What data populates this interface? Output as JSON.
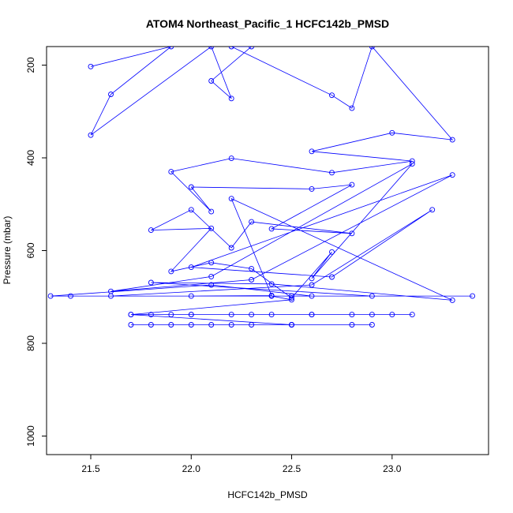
{
  "chart_data": {
    "type": "line",
    "title": "ATOM4 Northeast_Pacific_1 HCFC142b_PMSD",
    "xlabel": "HCFC142b_PMSD",
    "ylabel": "Pressure (mbar)",
    "xlim": [
      21.28,
      23.48
    ],
    "ylim": [
      1040,
      160
    ],
    "y_inverted": true,
    "x_ticks": [
      21.5,
      22.0,
      22.5,
      23.0
    ],
    "x_tick_labels": [
      "21.5",
      "22.0",
      "22.5",
      "23.0"
    ],
    "y_ticks": [
      200,
      400,
      600,
      800,
      1000
    ],
    "y_tick_labels": [
      "200",
      "400",
      "600",
      "800",
      "1000"
    ],
    "grid": false,
    "color": "#0000ff",
    "marker": "open-circle",
    "series": [
      {
        "x": [
          21.5,
          21.9,
          21.6,
          21.5,
          22.1,
          22.2,
          22.1,
          22.3,
          22.2,
          22.7,
          22.8,
          22.9,
          23.3,
          23.0,
          22.6,
          23.1,
          22.7,
          22.2,
          21.9,
          22.1,
          22.0,
          22.6,
          22.8,
          22.4,
          22.8,
          22.3,
          22.2,
          22.0,
          21.8,
          22.1,
          21.9,
          22.1,
          22.3,
          22.5,
          22.7,
          22.6,
          23.1,
          22.1,
          21.6,
          22.3,
          23.3,
          22.0,
          22.7,
          23.2,
          22.6,
          21.6,
          22.9,
          21.8,
          22.4,
          23.3,
          22.2,
          22.4,
          22.0,
          22.5,
          21.3,
          22.1,
          22.6,
          21.4,
          23.4,
          22.4,
          22.5,
          21.7,
          22.6,
          22.3,
          22.0,
          23.0,
          21.8,
          22.9,
          21.9,
          22.8,
          22.0,
          22.4,
          22.2,
          22.6,
          23.1,
          21.7,
          22.5,
          22.2,
          22.8,
          22.5,
          21.9,
          22.3,
          22.0,
          21.7,
          22.5,
          22.9,
          22.1,
          21.8
        ],
        "y": [
          203,
          160,
          263,
          351,
          160,
          272,
          234,
          160,
          160,
          265,
          293,
          160,
          361,
          346,
          386,
          407,
          432,
          401,
          430,
          516,
          463,
          467,
          458,
          553,
          563,
          538,
          594,
          512,
          556,
          552,
          645,
          626,
          639,
          702,
          603,
          660,
          413,
          656,
          688,
          663,
          437,
          636,
          657,
          512,
          674,
          698,
          698,
          669,
          672,
          707,
          488,
          697,
          698,
          698,
          698,
          674,
          698,
          698,
          698,
          698,
          706,
          738,
          738,
          738,
          738,
          738,
          738,
          738,
          738,
          738,
          738,
          738,
          738,
          738,
          738,
          738,
          760,
          760,
          760,
          760,
          760,
          760,
          760,
          760,
          760,
          760,
          760,
          760
        ]
      }
    ]
  }
}
